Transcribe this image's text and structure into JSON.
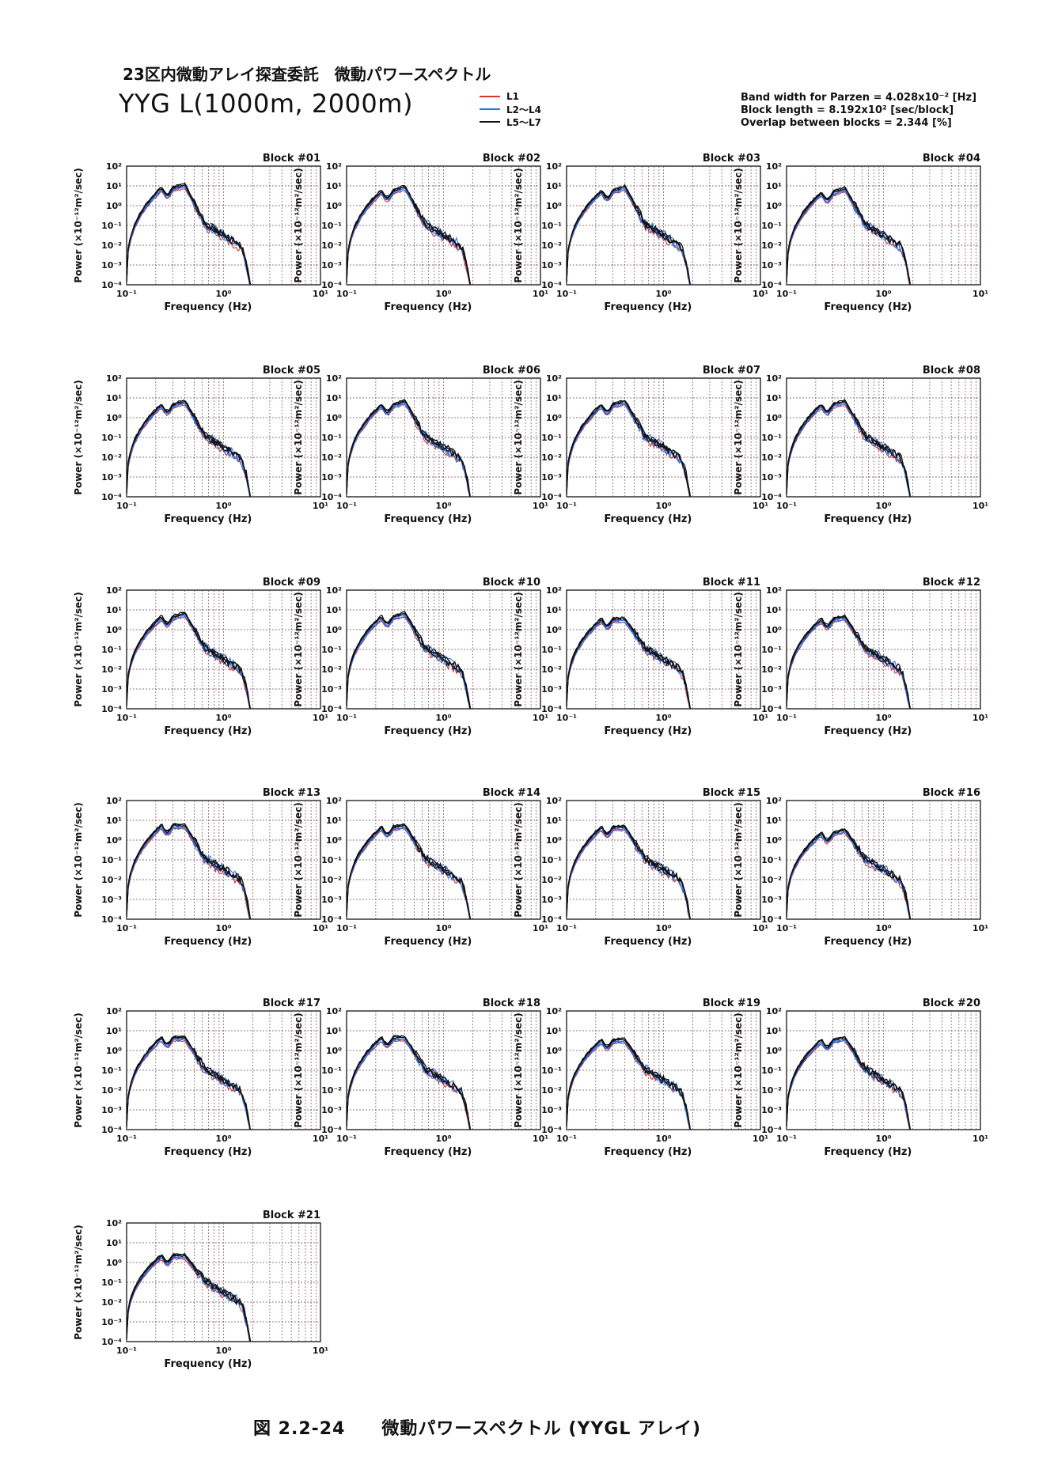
{
  "header": {
    "title_line1": "23区内微動アレイ探査委託　微動パワースペクトル",
    "title_line2": "YYG L(1000m, 2000m)"
  },
  "legend": [
    {
      "label": "L1",
      "color": "#e03030"
    },
    {
      "label": "L2～L4",
      "color": "#3070e0"
    },
    {
      "label": "L5～L7",
      "color": "#111111"
    }
  ],
  "params": {
    "bandwidth": "Band width for Parzen = 4.028x10⁻² [Hz]",
    "block_length": "Block length = 8.192x10² [sec/block]",
    "overlap": "Overlap between blocks = 2.344 [%]"
  },
  "caption": "図 2.2-24　　微動パワースペクトル (YYGL アレイ)",
  "chart_data": {
    "type": "line",
    "x_scale": "log",
    "y_scale": "log",
    "xlim": [
      0.1,
      10
    ],
    "ylim": [
      0.0001,
      100
    ],
    "xlabel": "Frequency (Hz)",
    "ylabel": "Power (×10⁻¹²m²/sec)",
    "x_ticks": [
      "10⁻¹",
      "10⁰",
      "10¹"
    ],
    "y_ticks": [
      "10²",
      "10¹",
      "10⁰",
      "10⁻¹",
      "10⁻²",
      "10⁻³",
      "10⁻⁴"
    ],
    "grid": true,
    "legend_position": "top",
    "blocks": [
      {
        "title": "Block #01",
        "peak1": 7,
        "peak2": 10
      },
      {
        "title": "Block #02",
        "peak1": 5,
        "peak2": 8
      },
      {
        "title": "Block #03",
        "peak1": 5,
        "peak2": 8
      },
      {
        "title": "Block #04",
        "peak1": 4,
        "peak2": 7
      },
      {
        "title": "Block #05",
        "peak1": 4,
        "peak2": 6
      },
      {
        "title": "Block #06",
        "peak1": 4,
        "peak2": 6
      },
      {
        "title": "Block #07",
        "peak1": 4,
        "peak2": 6
      },
      {
        "title": "Block #08",
        "peak1": 4,
        "peak2": 6
      },
      {
        "title": "Block #09",
        "peak1": 4,
        "peak2": 6
      },
      {
        "title": "Block #10",
        "peak1": 4,
        "peak2": 6
      },
      {
        "title": "Block #11",
        "peak1": 3,
        "peak2": 3
      },
      {
        "title": "Block #12",
        "peak1": 3,
        "peak2": 4
      },
      {
        "title": "Block #13",
        "peak1": 5,
        "peak2": 5
      },
      {
        "title": "Block #14",
        "peak1": 4,
        "peak2": 5
      },
      {
        "title": "Block #15",
        "peak1": 4,
        "peak2": 4
      },
      {
        "title": "Block #16",
        "peak1": 2,
        "peak2": 3
      },
      {
        "title": "Block #17",
        "peak1": 4,
        "peak2": 4
      },
      {
        "title": "Block #18",
        "peak1": 4,
        "peak2": 4
      },
      {
        "title": "Block #19",
        "peak1": 3,
        "peak2": 3
      },
      {
        "title": "Block #20",
        "peak1": 3,
        "peak2": 4
      },
      {
        "title": "Block #21",
        "peak1": 2,
        "peak2": 2
      }
    ]
  }
}
